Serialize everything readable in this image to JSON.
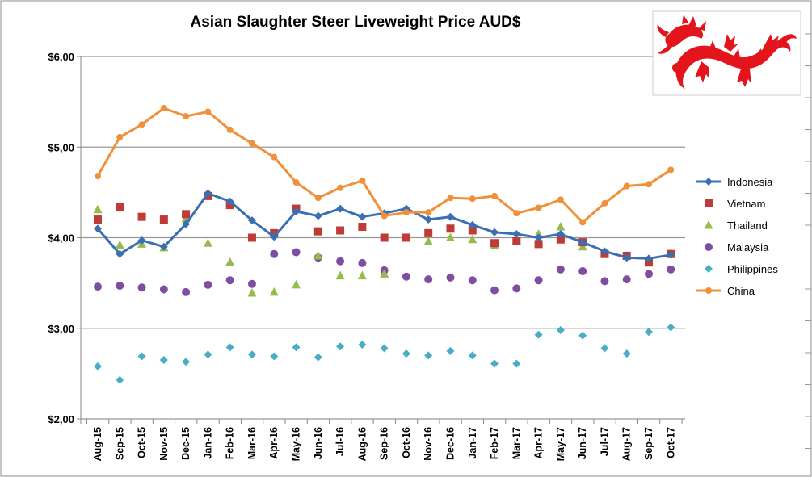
{
  "chart_data": {
    "type": "line",
    "title": "Asian Slaughter Steer Liveweight Price AUD$",
    "xlabel": "",
    "ylabel": "",
    "ylim": [
      2,
      6
    ],
    "yticks": [
      "$2,00",
      "$3,00",
      "$4,00",
      "$5,00",
      "$6,00"
    ],
    "grid": true,
    "legend": "right",
    "categories": [
      "Aug-15",
      "Sep-15",
      "Oct-15",
      "Nov-15",
      "Dec-15",
      "Jan-16",
      "Feb-16",
      "Mar-16",
      "Apr-16",
      "May-16",
      "Jun-16",
      "Jul-16",
      "Aug-16",
      "Sep-16",
      "Oct-16",
      "Nov-16",
      "Dec-16",
      "Jan-17",
      "Feb-17",
      "Mar-17",
      "Apr-17",
      "May-17",
      "Jun-17",
      "Jul-17",
      "Aug-17",
      "Sep-17",
      "Oct-17"
    ],
    "series": [
      {
        "name": "Indonesia",
        "color": "#3a6fb4",
        "marker": "diamond",
        "line": true,
        "values": [
          4.1,
          3.82,
          3.97,
          3.9,
          4.15,
          4.49,
          4.4,
          4.19,
          4.01,
          4.29,
          4.24,
          4.32,
          4.23,
          4.27,
          4.32,
          4.2,
          4.23,
          4.14,
          4.06,
          4.04,
          4.0,
          4.04,
          3.95,
          3.85,
          3.78,
          3.77,
          3.81
        ]
      },
      {
        "name": "Vietnam",
        "color": "#be3b38",
        "marker": "square",
        "line": false,
        "values": [
          4.2,
          4.34,
          4.23,
          4.2,
          4.26,
          4.46,
          4.36,
          4.0,
          4.05,
          4.32,
          4.07,
          4.08,
          4.12,
          4.0,
          4.0,
          4.05,
          4.1,
          4.08,
          3.94,
          3.96,
          3.93,
          3.98,
          3.95,
          3.82,
          3.8,
          3.73,
          3.82
        ]
      },
      {
        "name": "Thailand",
        "color": "#97bb4c",
        "marker": "triangle",
        "line": false,
        "values": [
          4.31,
          3.92,
          3.93,
          3.89,
          4.21,
          3.94,
          3.73,
          3.39,
          3.4,
          3.48,
          3.8,
          3.58,
          3.58,
          3.6,
          4.0,
          3.96,
          4.0,
          3.98,
          3.91,
          3.97,
          4.04,
          4.12,
          3.9,
          3.82,
          3.8,
          3.72,
          3.83
        ]
      },
      {
        "name": "Malaysia",
        "color": "#7e4ea3",
        "marker": "circle",
        "line": false,
        "values": [
          3.46,
          3.47,
          3.45,
          3.43,
          3.4,
          3.48,
          3.53,
          3.49,
          3.82,
          3.84,
          3.78,
          3.74,
          3.72,
          3.64,
          3.57,
          3.54,
          3.56,
          3.53,
          3.42,
          3.44,
          3.53,
          3.65,
          3.63,
          3.52,
          3.54,
          3.6,
          3.65
        ]
      },
      {
        "name": "Philippines",
        "color": "#4aacc6",
        "marker": "diamond",
        "line": false,
        "values": [
          2.58,
          2.43,
          2.69,
          2.65,
          2.63,
          2.71,
          2.79,
          2.71,
          2.69,
          2.79,
          2.68,
          2.8,
          2.82,
          2.78,
          2.72,
          2.7,
          2.75,
          2.7,
          2.61,
          2.61,
          2.93,
          2.98,
          2.92,
          2.78,
          2.72,
          2.96,
          3.01
        ]
      },
      {
        "name": "China",
        "color": "#f0913a",
        "marker": "circle",
        "line": true,
        "values": [
          4.68,
          5.11,
          5.25,
          5.43,
          5.34,
          5.39,
          5.19,
          5.04,
          4.89,
          4.61,
          4.44,
          4.55,
          4.63,
          4.24,
          4.28,
          4.28,
          4.44,
          4.43,
          4.46,
          4.27,
          4.33,
          4.42,
          4.17,
          4.38,
          4.57,
          4.59,
          4.75
        ]
      }
    ]
  },
  "decoration": {
    "logo_description": "red dragon icon"
  }
}
